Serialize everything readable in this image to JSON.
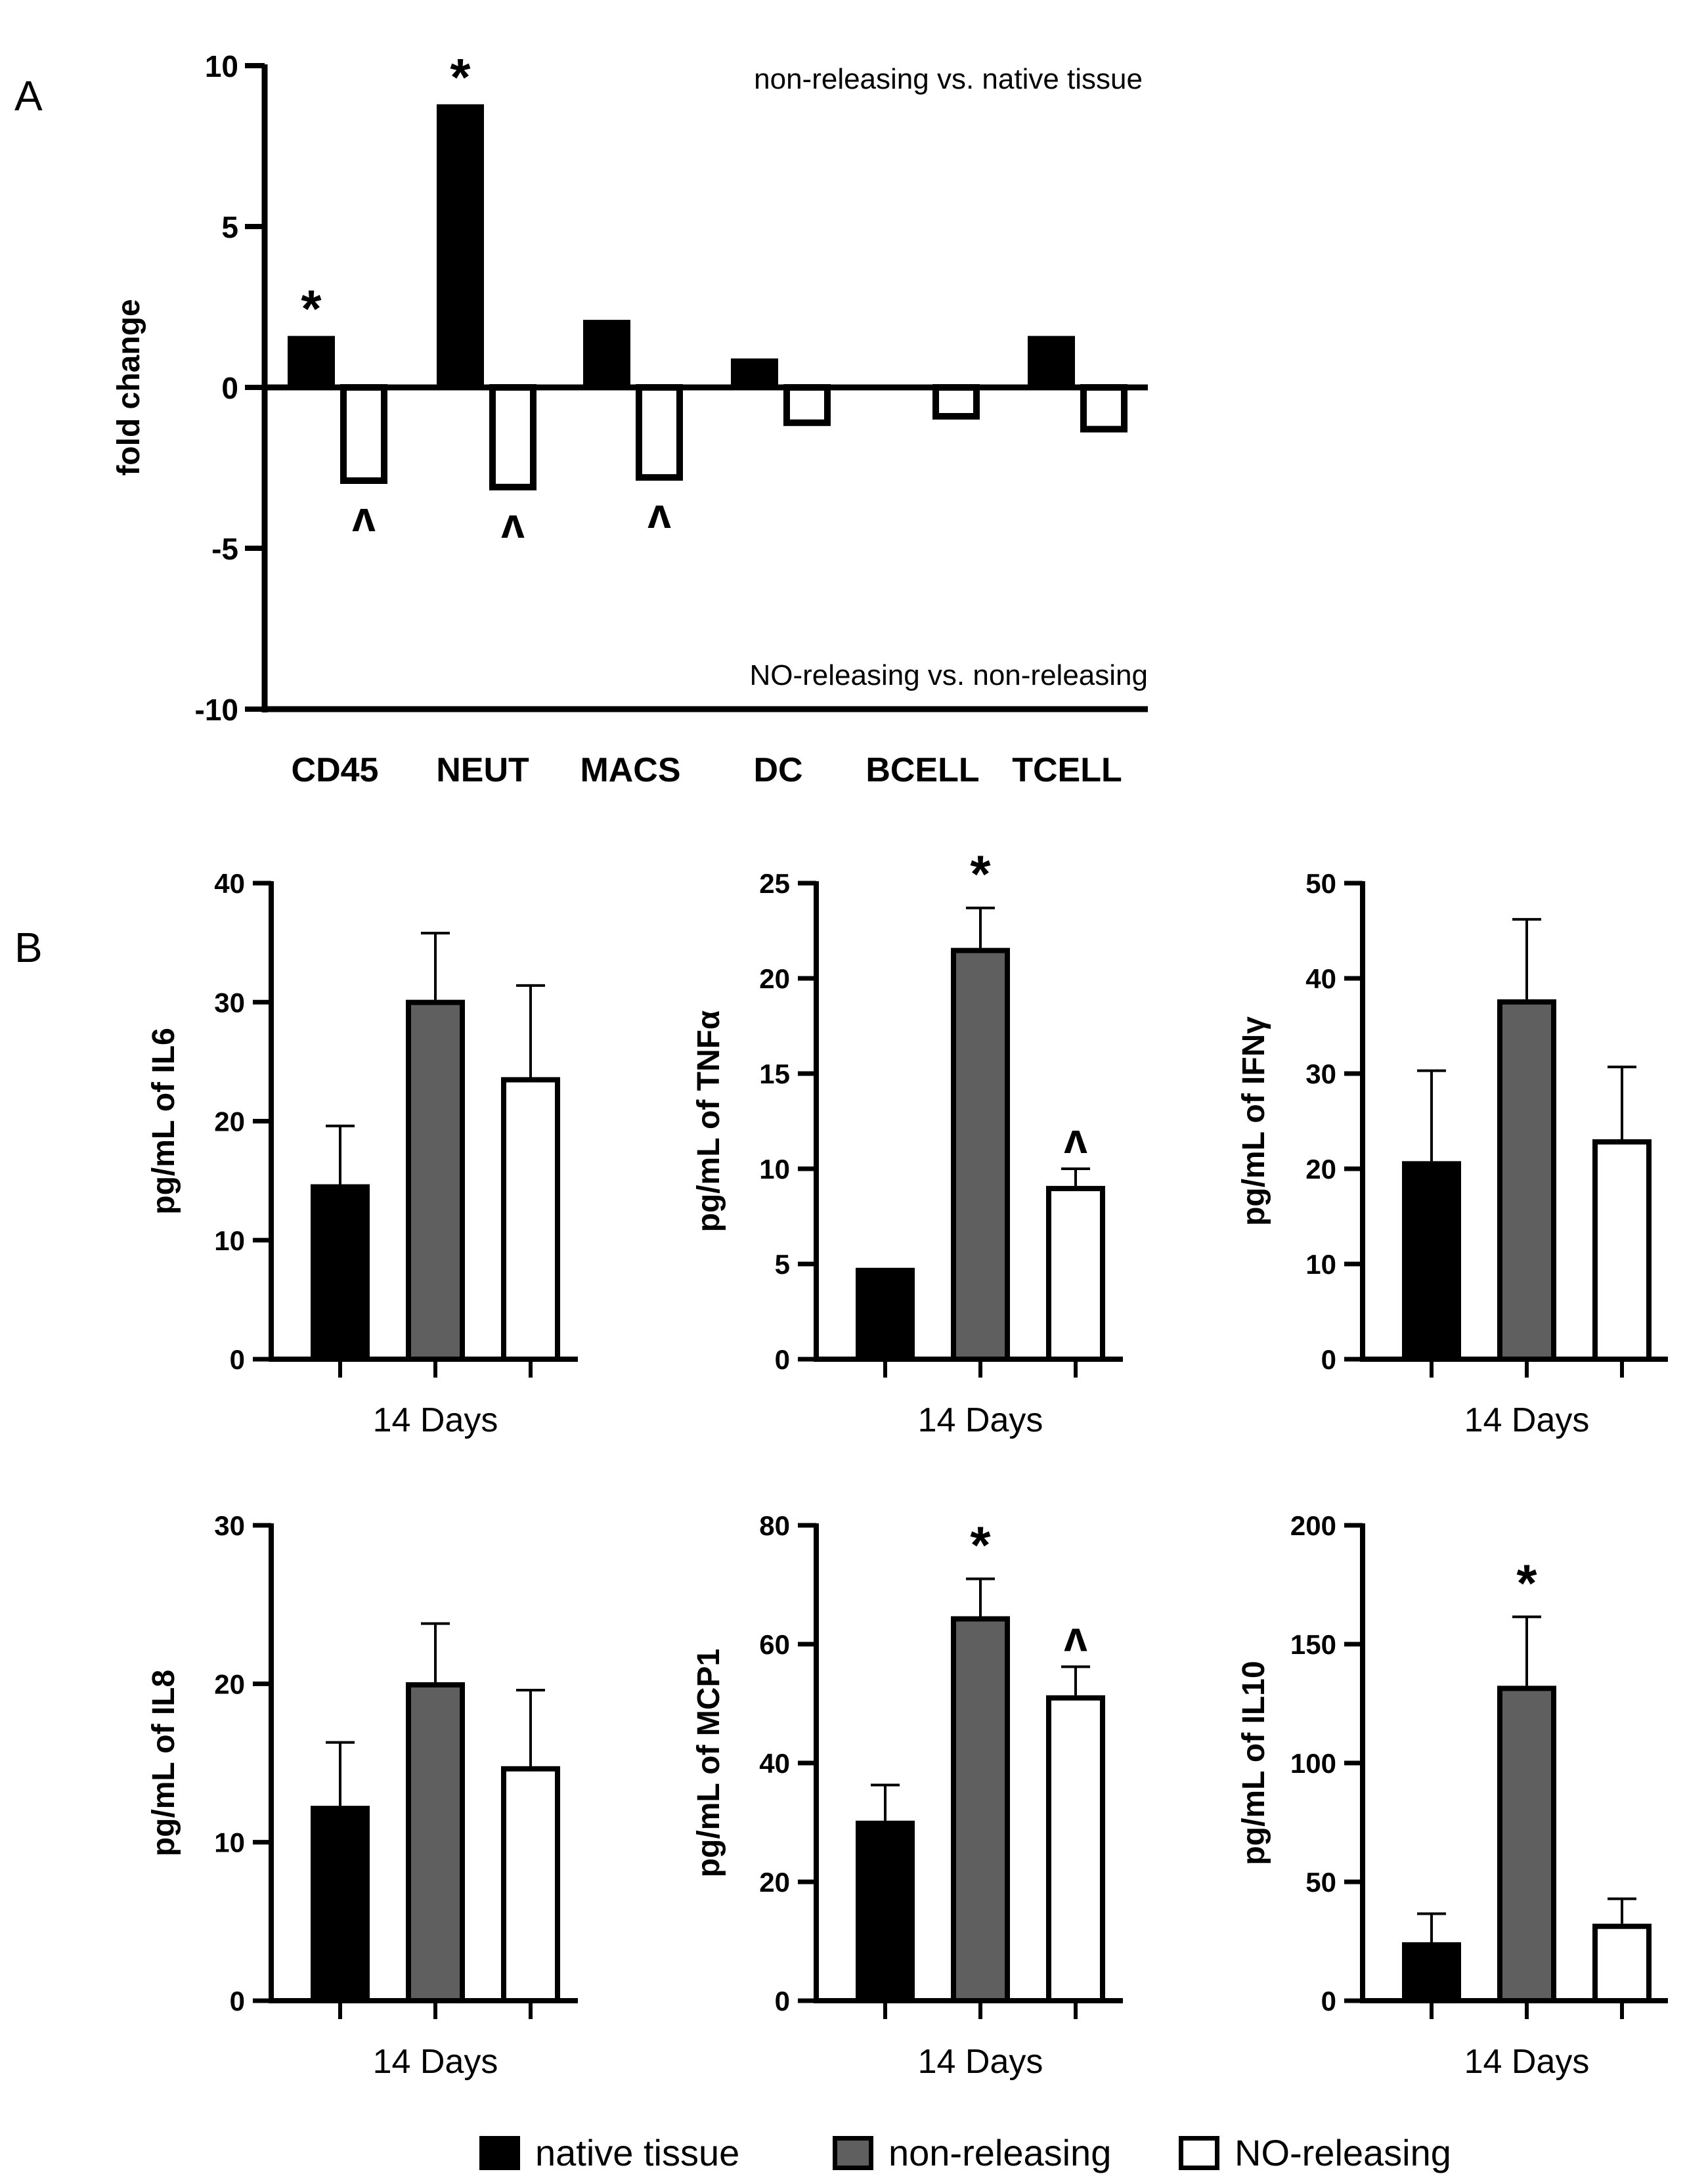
{
  "panels": {
    "a_label": "A",
    "b_label": "B"
  },
  "legend": {
    "items": [
      {
        "label": "native tissue",
        "color": "#000000"
      },
      {
        "label": "non-releasing",
        "color": "#5f5f5f"
      },
      {
        "label": "NO-releasing",
        "color": "#ffffff"
      }
    ]
  },
  "chart_data": [
    {
      "id": "fold-change",
      "type": "bar",
      "title": "",
      "ylabel": "fold change",
      "xlabel": "",
      "ylim": [
        -10,
        10
      ],
      "yticks": [
        10,
        5,
        0,
        -5,
        -10
      ],
      "categories": [
        "CD45",
        "NEUT",
        "MACS",
        "DC",
        "BCELL",
        "TCELL"
      ],
      "series": [
        {
          "name": "non-releasing vs. native tissue",
          "color": "#000000",
          "values": [
            1.6,
            8.8,
            2.1,
            0.9,
            0.05,
            1.6
          ]
        },
        {
          "name": "NO-releasing vs. non-releasing",
          "color": "#ffffff",
          "values": [
            -3.0,
            -3.2,
            -2.9,
            -1.2,
            -1.0,
            -1.4
          ]
        }
      ],
      "annotations": {
        "top_right": "non-releasing vs. native tissue",
        "bottom_right": "NO-releasing vs. non-releasing"
      },
      "marks": [
        {
          "series": 0,
          "category": 0,
          "symbol": "*"
        },
        {
          "series": 0,
          "category": 1,
          "symbol": "*"
        },
        {
          "series": 1,
          "category": 0,
          "symbol": "^"
        },
        {
          "series": 1,
          "category": 1,
          "symbol": "^"
        },
        {
          "series": 1,
          "category": 2,
          "symbol": "^"
        }
      ]
    },
    {
      "id": "il6",
      "type": "bar",
      "ylabel": "pg/mL of  IL6",
      "xlabel": "14 Days",
      "ylim": [
        0,
        40
      ],
      "yticks": [
        0,
        10,
        20,
        30,
        40
      ],
      "groups": [
        "native tissue",
        "non-releasing",
        "NO-releasing"
      ],
      "values": [
        14.7,
        30.2,
        23.7
      ],
      "errors": [
        4.9,
        5.6,
        7.7
      ],
      "marks": [
        null,
        null,
        null
      ]
    },
    {
      "id": "tnfa",
      "type": "bar",
      "ylabel": "pg/mL of TNFα",
      "xlabel": "14 Days",
      "ylim": [
        0,
        25
      ],
      "yticks": [
        0,
        5,
        10,
        15,
        20,
        25
      ],
      "groups": [
        "native tissue",
        "non-releasing",
        "NO-releasing"
      ],
      "values": [
        4.8,
        21.6,
        9.1
      ],
      "errors": [
        0,
        2.1,
        0.9
      ],
      "marks": [
        null,
        "*",
        "^"
      ]
    },
    {
      "id": "ifng",
      "type": "bar",
      "ylabel": "pg/mL of IFNγ",
      "xlabel": "14 Days",
      "ylim": [
        0,
        50
      ],
      "yticks": [
        0,
        10,
        20,
        30,
        40,
        50
      ],
      "groups": [
        "native tissue",
        "non-releasing",
        "NO-releasing"
      ],
      "values": [
        20.8,
        37.8,
        23.1
      ],
      "errors": [
        9.5,
        8.4,
        7.6
      ],
      "marks": [
        null,
        null,
        null
      ]
    },
    {
      "id": "il8",
      "type": "bar",
      "ylabel": "pg/mL of IL8",
      "xlabel": "14 Days",
      "ylim": [
        0,
        30
      ],
      "yticks": [
        0,
        10,
        20,
        30
      ],
      "groups": [
        "native tissue",
        "non-releasing",
        "NO-releasing"
      ],
      "values": [
        12.3,
        20.1,
        14.8
      ],
      "errors": [
        4.0,
        3.7,
        4.8
      ],
      "marks": [
        null,
        null,
        null
      ]
    },
    {
      "id": "mcp1",
      "type": "bar",
      "ylabel": "pg/mL of MCP1",
      "xlabel": "14 Days",
      "ylim": [
        0,
        80
      ],
      "yticks": [
        0,
        20,
        40,
        60,
        80
      ],
      "groups": [
        "native tissue",
        "non-releasing",
        "NO-releasing"
      ],
      "values": [
        30.3,
        64.7,
        51.4
      ],
      "errors": [
        6.0,
        6.3,
        4.8
      ],
      "marks": [
        null,
        "*",
        "^"
      ]
    },
    {
      "id": "il10",
      "type": "bar",
      "ylabel": "pg/mL of  IL10",
      "xlabel": "14 Days",
      "ylim": [
        0,
        200
      ],
      "yticks": [
        0,
        50,
        100,
        150,
        200
      ],
      "groups": [
        "native tissue",
        "non-releasing",
        "NO-releasing"
      ],
      "values": [
        24.6,
        132.5,
        32.4
      ],
      "errors": [
        12.0,
        29.0,
        10.5
      ],
      "marks": [
        null,
        "*",
        null
      ]
    }
  ]
}
